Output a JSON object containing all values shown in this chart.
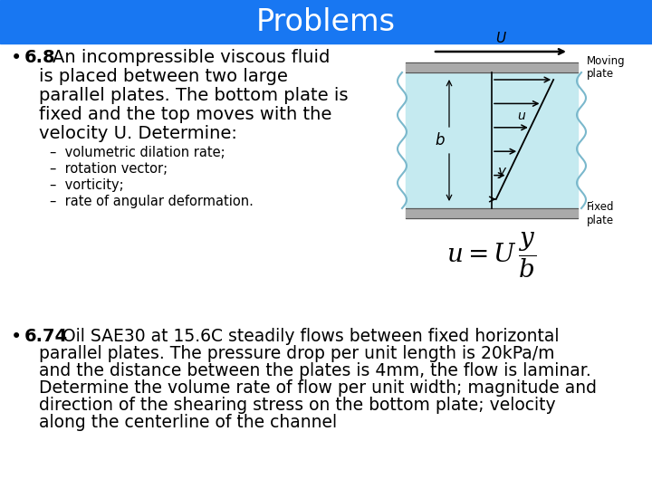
{
  "title": "Problems",
  "title_bg_color": "#1877f2",
  "title_text_color": "#ffffff",
  "bg_color": "#ffffff",
  "sub_items": [
    "–  volumetric dilation rate;",
    "–  rotation vector;",
    "–  vorticity;",
    "–  rate of angular deformation."
  ],
  "diagram": {
    "plate_color": "#aaaaaa",
    "fluid_color": "#c5eaf0",
    "wavy_color": "#7ab8cc",
    "line_color": "#555555",
    "arrow_color": "#000000"
  }
}
